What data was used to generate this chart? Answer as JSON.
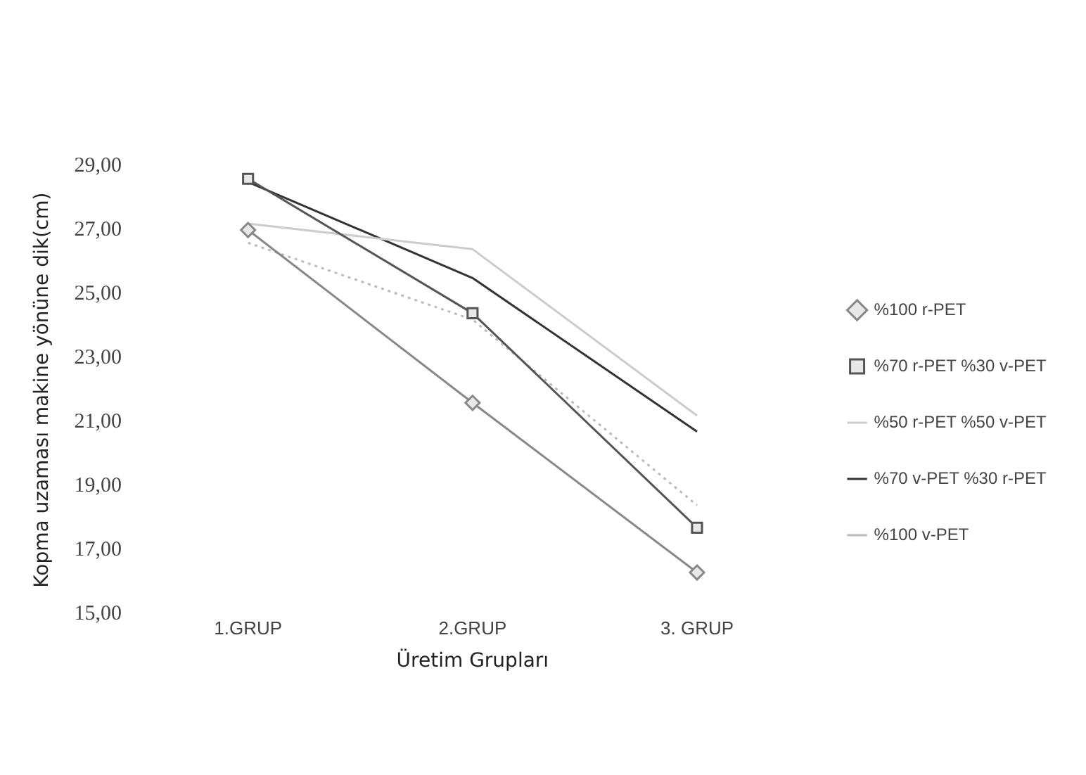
{
  "chart_data": {
    "type": "line",
    "xlabel": "Üretim Grupları",
    "ylabel": "Kopma uzaması makine yönüne dik(cm)",
    "categories": [
      "1.GRUP",
      "2.GRUP",
      "3. GRUP"
    ],
    "series": [
      {
        "name": "%100 r-PET",
        "color": "#888888",
        "marker": "diamond",
        "line_style": "solid",
        "values": [
          27.0,
          21.6,
          16.3
        ]
      },
      {
        "name": "%70 r-PET %30 v-PET",
        "color": "#555555",
        "marker": "square",
        "line_style": "solid",
        "values": [
          28.6,
          24.4,
          17.7
        ]
      },
      {
        "name": "%50 r-PET %50 v-PET",
        "color": "#cccccc",
        "marker": "none",
        "line_style": "solid",
        "values": [
          27.2,
          26.4,
          21.2
        ]
      },
      {
        "name": "%70 v-PET %30 r-PET",
        "color": "#333333",
        "marker": "none",
        "line_style": "solid",
        "values": [
          28.5,
          25.5,
          20.7
        ]
      },
      {
        "name": "%100 v-PET",
        "color": "#bbbbbb",
        "marker": "none",
        "line_style": "dotted",
        "values": [
          26.6,
          24.2,
          18.4
        ]
      }
    ],
    "ylim": [
      15,
      29
    ],
    "yticks": [
      {
        "value": 15,
        "label": "15,00"
      },
      {
        "value": 17,
        "label": "17,00"
      },
      {
        "value": 19,
        "label": "19,00"
      },
      {
        "value": 21,
        "label": "21,00"
      },
      {
        "value": 23,
        "label": "23,00"
      },
      {
        "value": 25,
        "label": "25,00"
      },
      {
        "value": 27,
        "label": "27,00"
      },
      {
        "value": 29,
        "label": "29,00"
      }
    ],
    "grid": false,
    "legend": "right"
  }
}
